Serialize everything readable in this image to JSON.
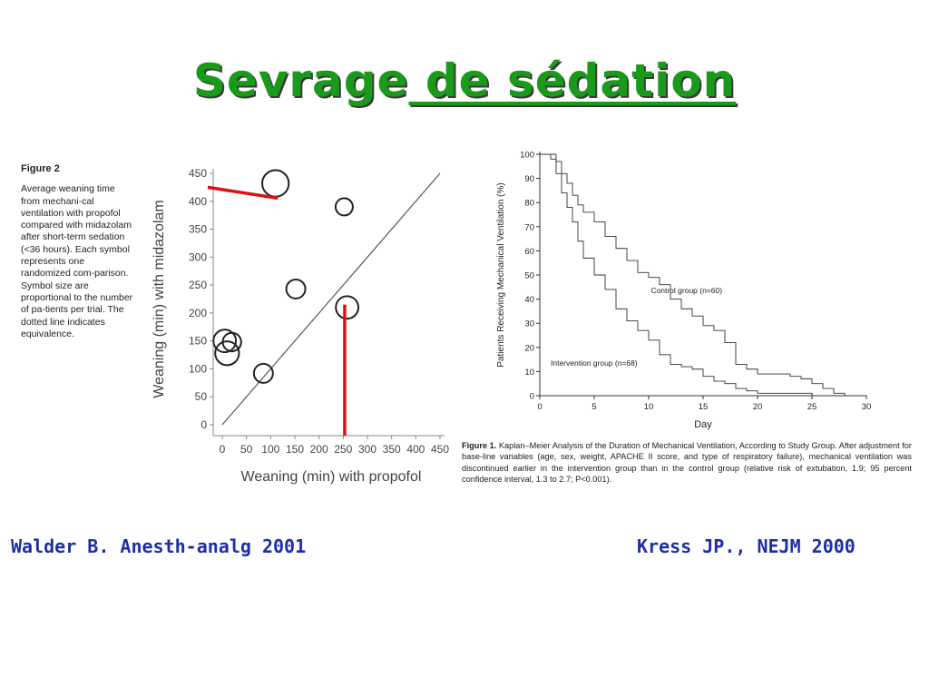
{
  "slide": {
    "title_part1": "Sevrage",
    "title_part2": " de sédation",
    "citation_left": "Walder B. Anesth-analg 2001",
    "citation_right": "Kress JP., NEJM 2000"
  },
  "left_figure": {
    "figure_label": "Figure 2",
    "caption": "Average weaning time from mechani-cal ventilation with propofol compared with midazolam after short-term sedation (<36 hours). Each symbol represents one randomized com-parison. Symbol size are proportional to the number of pa-tients per trial. The dotted line indicates equivalence.",
    "highlight_color": "#e01010"
  },
  "right_figure": {
    "figure_label": "Figure 1.",
    "caption": "Kaplan–Meier Analysis of the Duration of Mechanical Ventilation, According to Study Group. After adjustment for base-line variables (age, sex, weight, APACHE II score, and type of respiratory failure), mechanical ventilation was discontinued earlier in the intervention group than in the control group (relative risk of extubation, 1.9; 95 percent confidence interval, 1.3 to 2.7; P<0.001)."
  },
  "chart_data": [
    {
      "type": "scatter",
      "title": "",
      "xlabel": "Weaning (min) with propofol",
      "ylabel": "Weaning (min) with midazolam",
      "xlim": [
        0,
        450
      ],
      "ylim": [
        0,
        450
      ],
      "xticks": [
        0,
        50,
        100,
        150,
        200,
        250,
        300,
        350,
        400,
        450
      ],
      "yticks": [
        0,
        50,
        100,
        150,
        200,
        250,
        300,
        350,
        400,
        450
      ],
      "points": [
        {
          "x": 110,
          "y": 432,
          "size": 3
        },
        {
          "x": 252,
          "y": 390,
          "size": 1
        },
        {
          "x": 152,
          "y": 243,
          "size": 1.3
        },
        {
          "x": 258,
          "y": 210,
          "size": 2
        },
        {
          "x": 5,
          "y": 150,
          "size": 2
        },
        {
          "x": 20,
          "y": 148,
          "size": 1.2
        },
        {
          "x": 10,
          "y": 128,
          "size": 2.3
        },
        {
          "x": 85,
          "y": 92,
          "size": 1.3
        }
      ],
      "equivalence_line": [
        [
          0,
          0
        ],
        [
          450,
          450
        ]
      ],
      "highlight_lines": [
        {
          "from": [
            -30,
            425
          ],
          "to": [
            115,
            425
          ]
        },
        {
          "from": [
            253,
            215
          ],
          "to": [
            253,
            0
          ]
        }
      ],
      "grid": false
    },
    {
      "type": "line",
      "title": "",
      "xlabel": "Day",
      "ylabel": "Patients Receiving Mechanical Ventilation (%)",
      "xlim": [
        0,
        30
      ],
      "ylim": [
        0,
        100
      ],
      "xticks": [
        0,
        5,
        10,
        15,
        20,
        25,
        30
      ],
      "yticks": [
        0,
        10,
        20,
        30,
        40,
        50,
        60,
        70,
        80,
        90,
        100
      ],
      "series": [
        {
          "name": "Control group (n=60)",
          "points": [
            [
              0,
              100
            ],
            [
              1,
              100
            ],
            [
              1.5,
              97
            ],
            [
              2,
              92
            ],
            [
              2.5,
              88
            ],
            [
              3,
              83
            ],
            [
              3.5,
              79
            ],
            [
              4,
              76
            ],
            [
              5,
              72
            ],
            [
              6,
              66
            ],
            [
              7,
              61
            ],
            [
              8,
              56
            ],
            [
              9,
              51
            ],
            [
              10,
              49
            ],
            [
              11,
              46
            ],
            [
              12,
              40
            ],
            [
              13,
              36
            ],
            [
              14,
              33
            ],
            [
              15,
              29
            ],
            [
              16,
              27
            ],
            [
              17,
              22
            ],
            [
              18,
              13
            ],
            [
              19,
              11
            ],
            [
              20,
              9
            ],
            [
              22,
              9
            ],
            [
              23,
              8
            ],
            [
              24,
              7
            ],
            [
              25,
              5
            ],
            [
              26,
              3
            ],
            [
              27,
              1
            ],
            [
              28,
              0
            ]
          ]
        },
        {
          "name": "Intervention group (n=68)",
          "points": [
            [
              0,
              100
            ],
            [
              1,
              98
            ],
            [
              1.5,
              92
            ],
            [
              2,
              84
            ],
            [
              2.5,
              78
            ],
            [
              3,
              72
            ],
            [
              3.5,
              64
            ],
            [
              4,
              57
            ],
            [
              5,
              50
            ],
            [
              6,
              44
            ],
            [
              7,
              36
            ],
            [
              8,
              31
            ],
            [
              9,
              27
            ],
            [
              10,
              23
            ],
            [
              11,
              17
            ],
            [
              12,
              13
            ],
            [
              13,
              12
            ],
            [
              14,
              11
            ],
            [
              15,
              8
            ],
            [
              16,
              6
            ],
            [
              17,
              5
            ],
            [
              18,
              3
            ],
            [
              19,
              2
            ],
            [
              20,
              1
            ],
            [
              22,
              1
            ],
            [
              25,
              0
            ],
            [
              28,
              0
            ]
          ]
        }
      ],
      "series_labels": [
        "Control group (n=60)",
        "Intervention group (n=68)"
      ],
      "grid": false
    }
  ]
}
